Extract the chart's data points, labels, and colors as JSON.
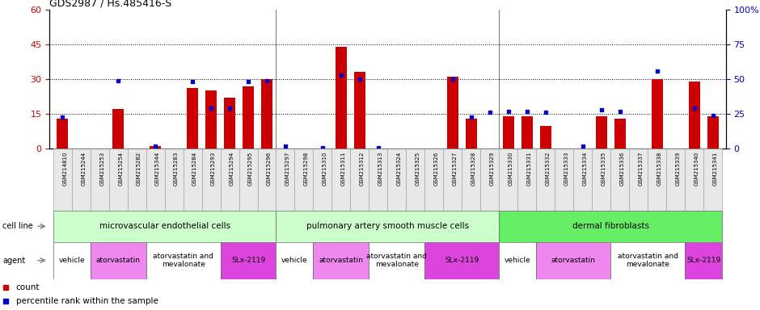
{
  "title": "GDS2987 / Hs.485416-S",
  "samples": [
    "GSM214810",
    "GSM215244",
    "GSM215253",
    "GSM215254",
    "GSM215282",
    "GSM215344",
    "GSM215283",
    "GSM215284",
    "GSM215293",
    "GSM215294",
    "GSM215295",
    "GSM215296",
    "GSM215297",
    "GSM215298",
    "GSM215310",
    "GSM215311",
    "GSM215312",
    "GSM215313",
    "GSM215324",
    "GSM215325",
    "GSM215326",
    "GSM215327",
    "GSM215328",
    "GSM215329",
    "GSM215330",
    "GSM215331",
    "GSM215332",
    "GSM215333",
    "GSM215334",
    "GSM215335",
    "GSM215336",
    "GSM215337",
    "GSM215338",
    "GSM215339",
    "GSM215340",
    "GSM215341"
  ],
  "counts": [
    13,
    0,
    0,
    17,
    0,
    1,
    0,
    26,
    25,
    22,
    27,
    30,
    0,
    0,
    0,
    44,
    33,
    0,
    0,
    0,
    0,
    31,
    13,
    0,
    14,
    14,
    10,
    0,
    0,
    14,
    13,
    0,
    30,
    0,
    29,
    14
  ],
  "percentiles": [
    23,
    0,
    0,
    49,
    0,
    2,
    0,
    48,
    29,
    29,
    48,
    49,
    2,
    0,
    1,
    53,
    50,
    1,
    0,
    0,
    0,
    50,
    23,
    26,
    27,
    27,
    26,
    0,
    2,
    28,
    27,
    0,
    56,
    0,
    29,
    24
  ],
  "ylim_left": [
    0,
    60
  ],
  "ylim_right": [
    0,
    100
  ],
  "yticks_left": [
    0,
    15,
    30,
    45,
    60
  ],
  "yticks_right": [
    0,
    25,
    50,
    75,
    100
  ],
  "bar_color": "#cc0000",
  "dot_color": "#0000cc",
  "cell_line_groups": [
    {
      "label": "microvascular endothelial cells",
      "start": 0,
      "end": 12,
      "color": "#ccffcc"
    },
    {
      "label": "pulmonary artery smooth muscle cells",
      "start": 12,
      "end": 24,
      "color": "#ccffcc"
    },
    {
      "label": "dermal fibroblasts",
      "start": 24,
      "end": 36,
      "color": "#66ee66"
    }
  ],
  "agent_groups": [
    {
      "label": "vehicle",
      "start": 0,
      "end": 2,
      "color": "#ffffff"
    },
    {
      "label": "atorvastatin",
      "start": 2,
      "end": 5,
      "color": "#ee88ee"
    },
    {
      "label": "atorvastatin and\nmevalonate",
      "start": 5,
      "end": 9,
      "color": "#ffffff"
    },
    {
      "label": "SLx-2119",
      "start": 9,
      "end": 12,
      "color": "#dd44dd"
    },
    {
      "label": "vehicle",
      "start": 12,
      "end": 14,
      "color": "#ffffff"
    },
    {
      "label": "atorvastatin",
      "start": 14,
      "end": 17,
      "color": "#ee88ee"
    },
    {
      "label": "atorvastatin and\nmevalonate",
      "start": 17,
      "end": 20,
      "color": "#ffffff"
    },
    {
      "label": "SLx-2119",
      "start": 20,
      "end": 24,
      "color": "#dd44dd"
    },
    {
      "label": "vehicle",
      "start": 24,
      "end": 26,
      "color": "#ffffff"
    },
    {
      "label": "atorvastatin",
      "start": 26,
      "end": 30,
      "color": "#ee88ee"
    },
    {
      "label": "atorvastatin and\nmevalonate",
      "start": 30,
      "end": 34,
      "color": "#ffffff"
    },
    {
      "label": "SLx-2119",
      "start": 34,
      "end": 36,
      "color": "#dd44dd"
    }
  ],
  "row_label_cell_line": "cell line",
  "row_label_agent": "agent",
  "legend_count": "count",
  "legend_percentile": "percentile rank within the sample"
}
